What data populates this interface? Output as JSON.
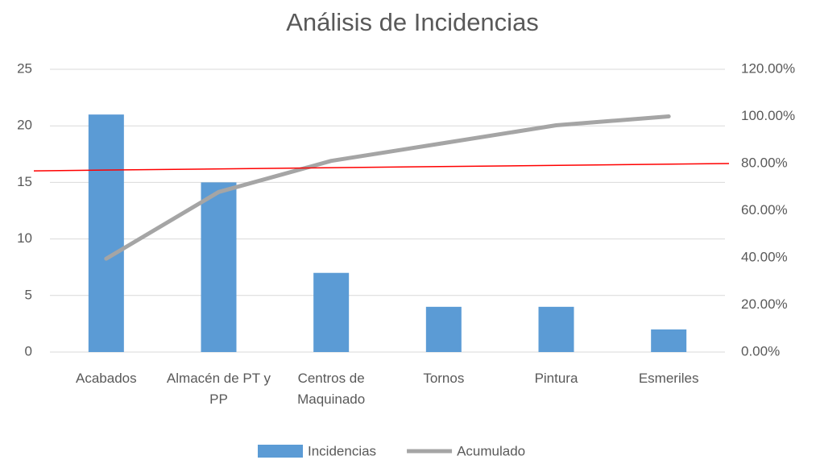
{
  "chart_data": {
    "type": "pareto",
    "title": "Análisis de Incidencias",
    "categories": [
      "Acabados",
      "Almacén de PT y PP",
      "Centros de Maquinado",
      "Tornos",
      "Pintura",
      "Esmeriles"
    ],
    "series": [
      {
        "name": "Incidencias",
        "color": "#5b9bd5",
        "type": "bar",
        "values": [
          21,
          15,
          7,
          4,
          4,
          2
        ]
      },
      {
        "name": "Acumulado",
        "color": "#a5a5a5",
        "type": "line",
        "axis": "y2",
        "values": [
          39.62,
          67.92,
          81.13,
          88.68,
          96.23,
          100
        ]
      }
    ],
    "reference_line": {
      "color": "#ff0000",
      "axis": "y2",
      "values": [
        76.9,
        80
      ]
    },
    "ylim": [
      0,
      25
    ],
    "yticks": [
      0,
      5,
      10,
      15,
      20,
      25
    ],
    "y2lim": [
      0,
      120
    ],
    "y2ticks": [
      {
        "value": 0,
        "label": "0.00%"
      },
      {
        "value": 20,
        "label": "20.00%"
      },
      {
        "value": 40,
        "label": "40.00%"
      },
      {
        "value": 60,
        "label": "60.00%"
      },
      {
        "value": 80,
        "label": "80.00%"
      },
      {
        "value": 100,
        "label": "100.00%"
      },
      {
        "value": 120,
        "label": "120.00%"
      }
    ],
    "grid": true,
    "legend": "bottom"
  }
}
